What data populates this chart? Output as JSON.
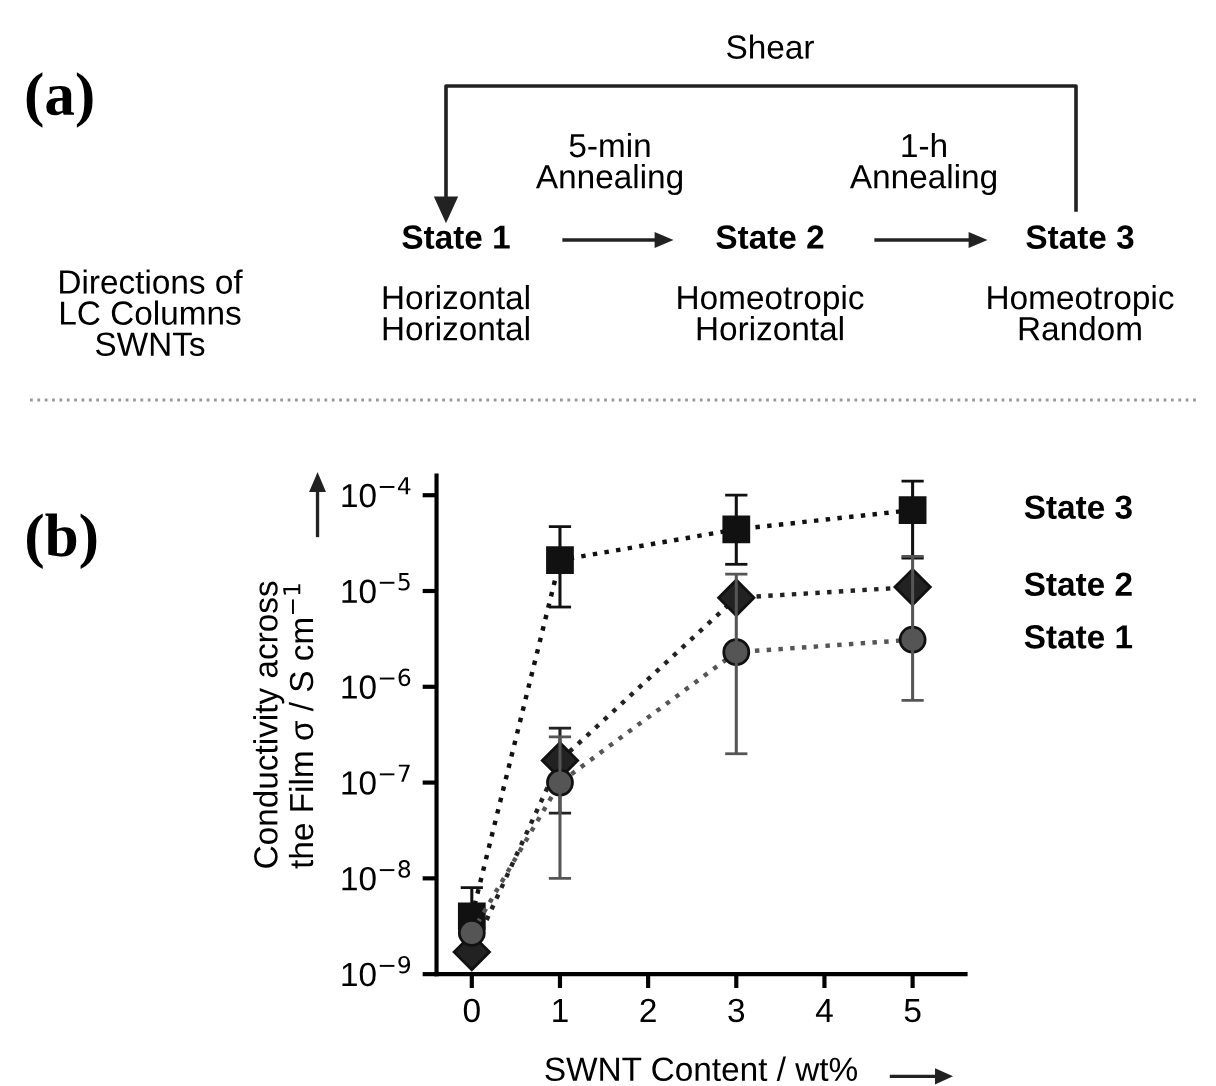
{
  "chart_data": [
    {
      "type": "other",
      "title": "(a)",
      "annotations": [
        "Shear",
        "5-min\nAnnealing",
        "1-h\nAnnealing",
        "State 1",
        "State 2",
        "State 3",
        "Directions of\nLC Columns\nSWNTs",
        "Horizontal\nHorizontal",
        "Homeotropic\nHorizontal",
        "Homeotropic\nRandom"
      ]
    },
    {
      "type": "line",
      "title": "(b)",
      "xlabel": "SWNT Content / wt%",
      "ylabel": "Conductivity across\nthe Film σ / S cm$^{−1}$",
      "log": "y",
      "line_style": "dotted",
      "xlim": [
        -0.4,
        5.6
      ],
      "xticks": [
        0,
        1,
        2,
        3,
        4,
        5
      ],
      "ylim": [
        1e-09,
        0.00016
      ],
      "yticks": [
        {
          "value": 1e-09,
          "label": "10$^{−9}$"
        },
        {
          "value": 1e-08,
          "label": "10$^{−8}$"
        },
        {
          "value": 1e-07,
          "label": "10$^{−7}$"
        },
        {
          "value": 1e-06,
          "label": "10$^{−6}$"
        },
        {
          "value": 1e-05,
          "label": "10$^{−5}$"
        },
        {
          "value": 0.0001,
          "label": "10$^{−4}$"
        }
      ],
      "x": [
        0,
        1,
        3,
        5
      ],
      "series": [
        {
          "name": "State 3",
          "color": "#111111",
          "marker": "square",
          "values": [
            4e-09,
            2.1e-05,
            4.4e-05,
            7e-05
          ],
          "errors": [
            [
              2e-09,
              8e-09
            ],
            [
              6.8e-06,
              4.7e-05
            ],
            [
              1.9e-05,
              0.0001
            ],
            [
              2.2e-05,
              0.00014
            ]
          ]
        },
        {
          "name": "State 2",
          "color": "#222222",
          "marker": "diamond",
          "values": [
            1.7e-09,
            1.7e-07,
            8.5e-06,
            1.1e-05
          ],
          "errors": [
            null,
            [
              4.8e-08,
              3.7e-07
            ],
            null,
            null
          ]
        },
        {
          "name": "State 1",
          "color": "#555555",
          "marker": "circle",
          "values": [
            2.7e-09,
            1e-07,
            2.3e-06,
            3.1e-06
          ],
          "errors": [
            null,
            [
              1e-08,
              3e-07
            ],
            [
              2e-07,
              1.5e-05
            ],
            [
              7.2e-07,
              2.3e-05
            ]
          ]
        }
      ]
    }
  ]
}
